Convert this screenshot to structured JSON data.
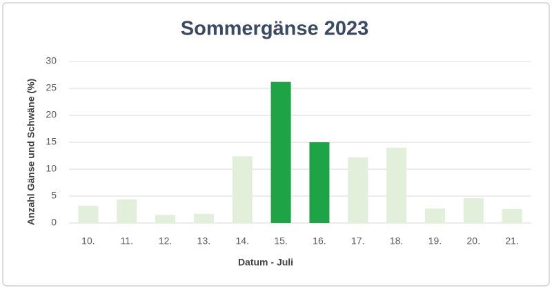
{
  "chart_data": {
    "type": "bar",
    "title": "Sommergänse 2023",
    "x_label": "Datum - Juli",
    "y_label": "Anzahl Gänse und Schwäne (%)",
    "categories": [
      "10.",
      "11.",
      "12.",
      "13.",
      "14.",
      "15.",
      "16.",
      "17.",
      "18.",
      "19.",
      "20.",
      "21."
    ],
    "values": [
      3.2,
      4.4,
      1.5,
      1.7,
      12.4,
      26.2,
      15,
      12.2,
      14,
      2.7,
      4.6,
      2.6
    ],
    "colors": [
      "#e2efda",
      "#e2efda",
      "#e2efda",
      "#e2efda",
      "#e2efda",
      "#1fa347",
      "#1fa347",
      "#e2efda",
      "#e2efda",
      "#e2efda",
      "#e2efda",
      "#e2efda"
    ],
    "ylim": [
      0,
      30
    ],
    "yticks": [
      0,
      5,
      10,
      15,
      20,
      25,
      30
    ],
    "grid": true
  }
}
